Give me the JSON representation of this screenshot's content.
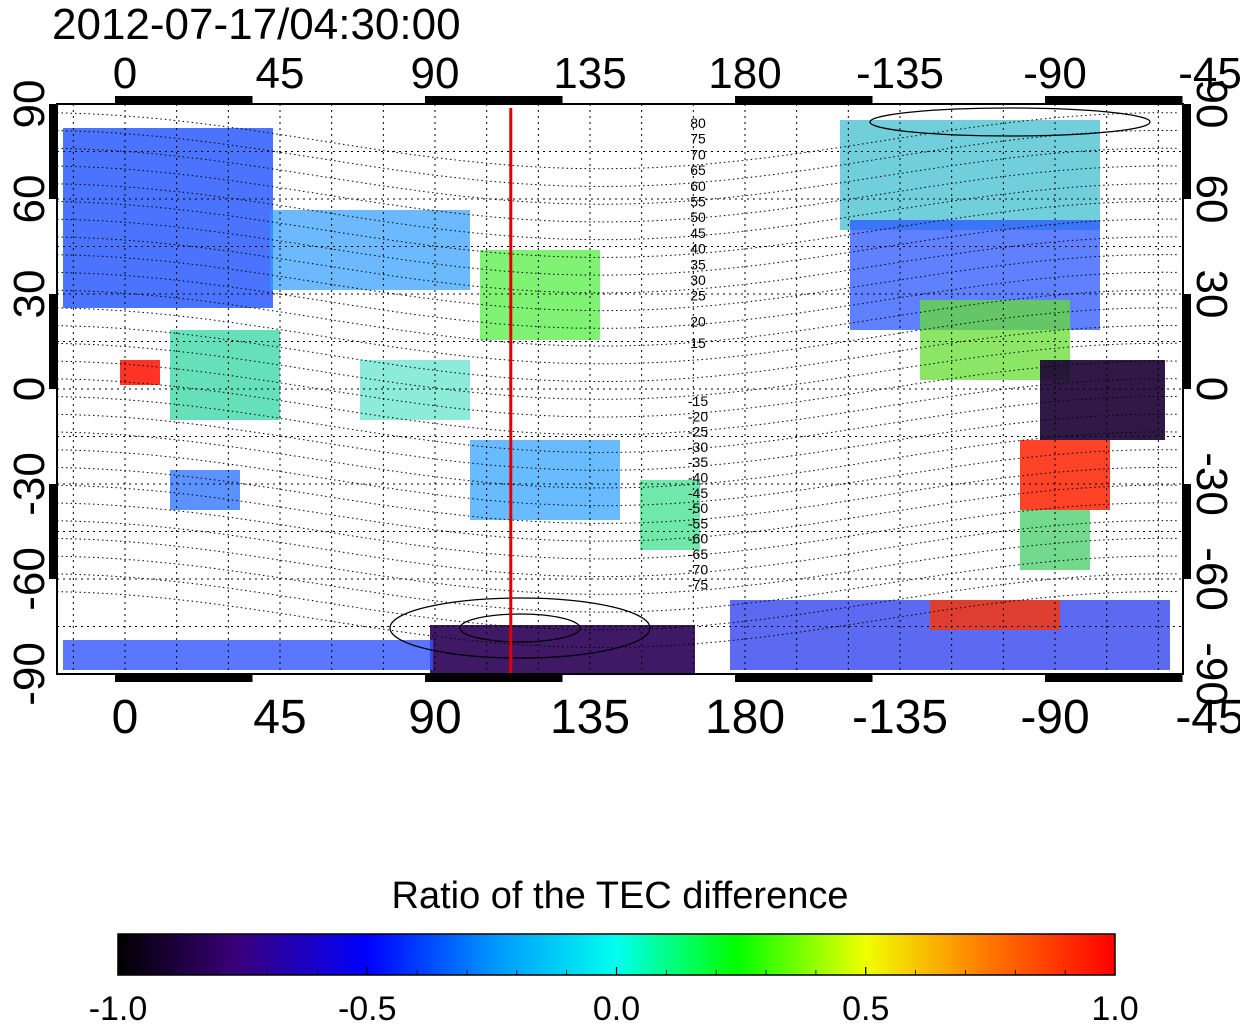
{
  "title": "2012-07-17/04:30:00",
  "longitude_ticks": [
    "0",
    "45",
    "90",
    "135",
    "180",
    "-135",
    "-90",
    "-45"
  ],
  "latitude_ticks": [
    "90",
    "60",
    "30",
    "0",
    "-30",
    "-60",
    "-90"
  ],
  "contour_labels_north": [
    "80",
    "75",
    "70",
    "65",
    "60",
    "55",
    "50",
    "45",
    "40",
    "35",
    "30",
    "25",
    "20",
    "15"
  ],
  "contour_labels_south": [
    "-15",
    "-20",
    "-25",
    "-30",
    "-35",
    "-40",
    "-45",
    "-50",
    "-55",
    "-60",
    "-65",
    "-70",
    "-75"
  ],
  "marker_longitude": 112,
  "colorbar": {
    "title": "Ratio of the TEC difference",
    "ticks": [
      "-1.0",
      "-0.5",
      "0.0",
      "0.5",
      "1.0"
    ],
    "range": [
      -1.0,
      1.0
    ]
  },
  "colors": {
    "marker_line": "#e00000",
    "frame": "#000000"
  }
}
